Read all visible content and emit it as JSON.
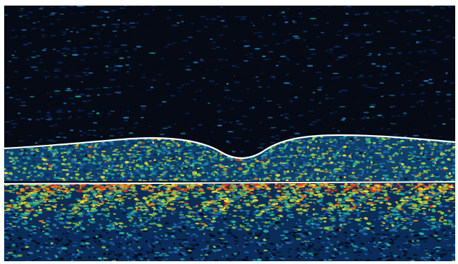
{
  "image": {
    "subject": "oct-retinal-cross-section",
    "colormap": [
      "#04081a",
      "#0a2a66",
      "#1f6fb0",
      "#1fb3a0",
      "#8fd046",
      "#f2e03a",
      "#f08a1e",
      "#e23a1a"
    ],
    "boundary_color": "#ffffff",
    "background_color": "#050a14",
    "features": {
      "foveal_pit": true,
      "inner_boundary_line": true,
      "rpe_line": true
    }
  }
}
